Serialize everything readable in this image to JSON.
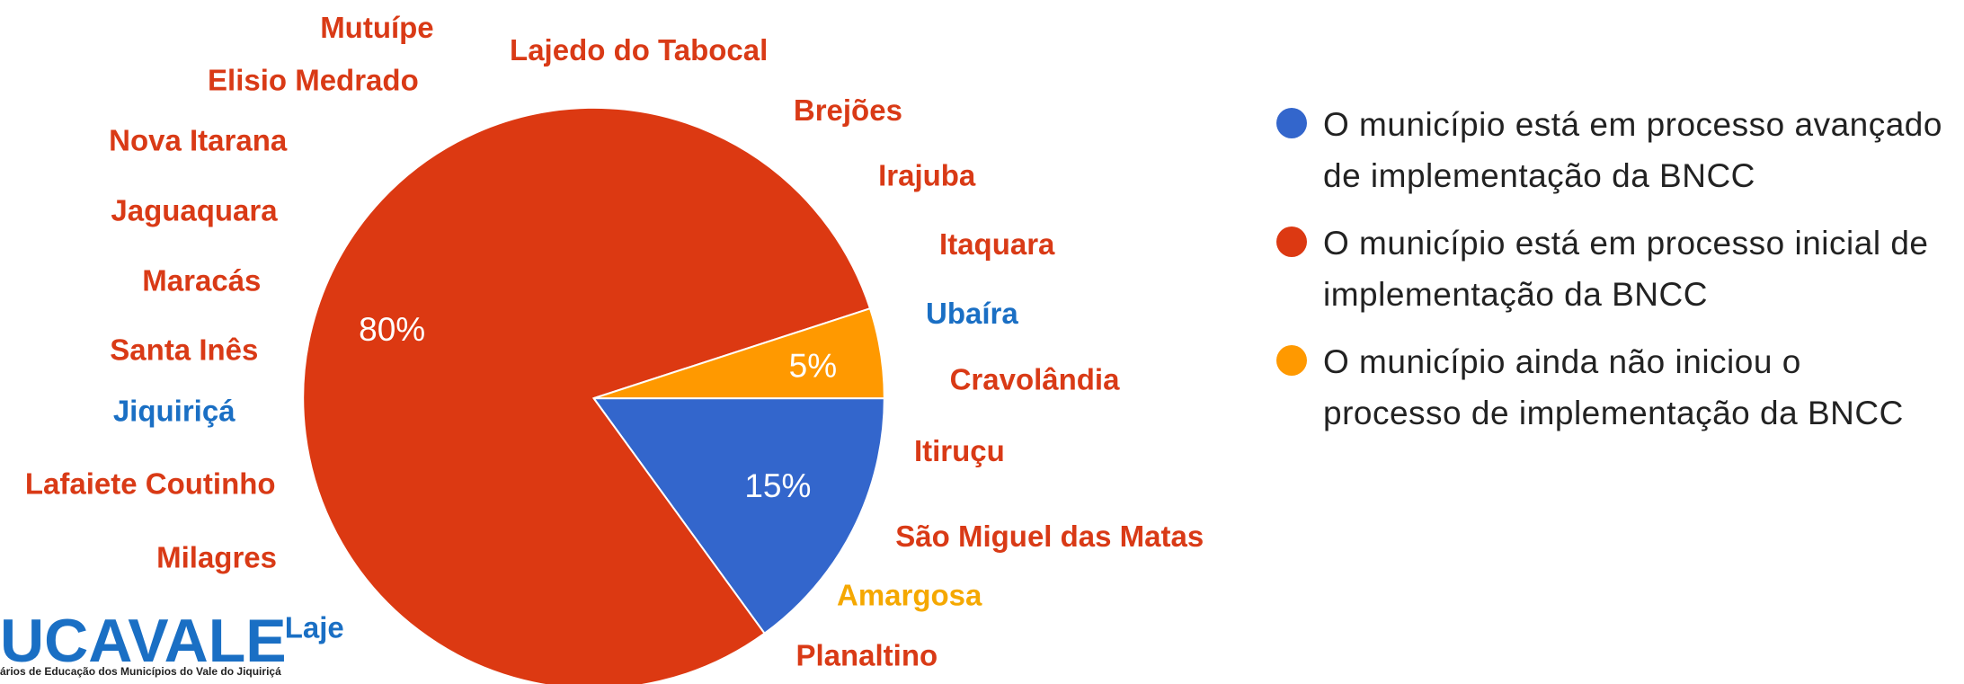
{
  "chart_data": {
    "type": "pie",
    "startangle": 90,
    "categories": [
      "O município está em processo avançado de implementação da BNCC",
      "O município está em processo inicial de implementação da BNCC",
      "O município ainda não iniciou o processo de implementação da BNCC"
    ],
    "values": [
      15,
      80,
      5
    ],
    "value_labels": [
      "15%",
      "80%",
      "5%"
    ],
    "colors": [
      "#3366cc",
      "#dc3912",
      "#ff9900"
    ],
    "legend": "right",
    "annotations": [
      {
        "text": "Mutuípe",
        "color": "#d93a16"
      },
      {
        "text": "Elisio Medrado",
        "color": "#d93a16"
      },
      {
        "text": "Lajedo do Tabocal",
        "color": "#d93a16"
      },
      {
        "text": "Brejões",
        "color": "#d93a16"
      },
      {
        "text": "Nova Itarana",
        "color": "#d93a16"
      },
      {
        "text": "Irajuba",
        "color": "#d93a16"
      },
      {
        "text": "Jaguaquara",
        "color": "#d93a16"
      },
      {
        "text": "Itaquara",
        "color": "#d93a16"
      },
      {
        "text": "Maracás",
        "color": "#d93a16"
      },
      {
        "text": "Ubaíra",
        "color": "#1a6fc4"
      },
      {
        "text": "Santa Inês",
        "color": "#d93a16"
      },
      {
        "text": "Cravolândia",
        "color": "#d93a16"
      },
      {
        "text": "Jiquiriçá",
        "color": "#1a6fc4"
      },
      {
        "text": "Itiruçu",
        "color": "#d93a16"
      },
      {
        "text": "Lafaiete Coutinho",
        "color": "#d93a16"
      },
      {
        "text": "São Miguel das Matas",
        "color": "#d93a16"
      },
      {
        "text": "Milagres",
        "color": "#d93a16"
      },
      {
        "text": "Amargosa",
        "color": "#f5a800"
      },
      {
        "text": "Laje",
        "color": "#1a6fc4"
      },
      {
        "text": "Planaltino",
        "color": "#d93a16"
      }
    ],
    "logo": {
      "text": "UCAVALE",
      "subtitle": "ários de Educação dos Municípios do Vale do Jiquiriçá",
      "color": "#1a6fc4"
    }
  }
}
